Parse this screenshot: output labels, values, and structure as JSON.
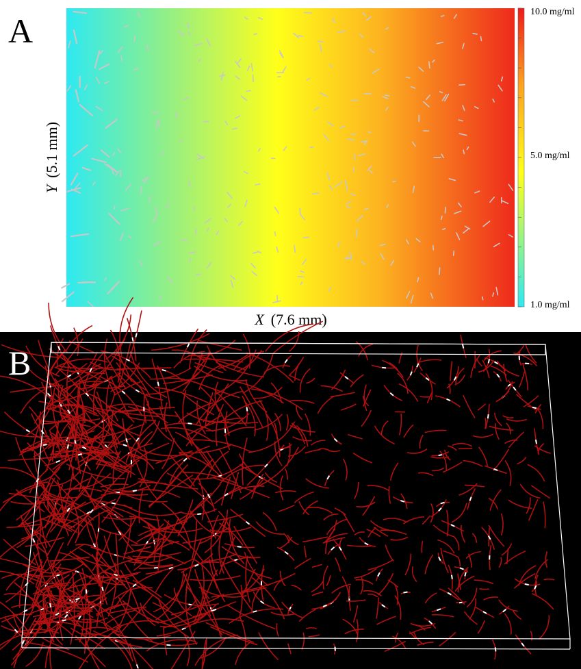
{
  "panel_a": {
    "label": "A",
    "colorbar": {
      "max": "10.0 mg/ml",
      "mid": "5.0 mg/ml",
      "min": "1.0 mg/ml"
    },
    "y_axis_label": {
      "variable": "Y",
      "extent": "(5.1 mm)"
    },
    "x_axis_label": {
      "variable": "X",
      "extent": "(7.6 mm)"
    }
  },
  "panel_b": {
    "label": "B"
  }
}
